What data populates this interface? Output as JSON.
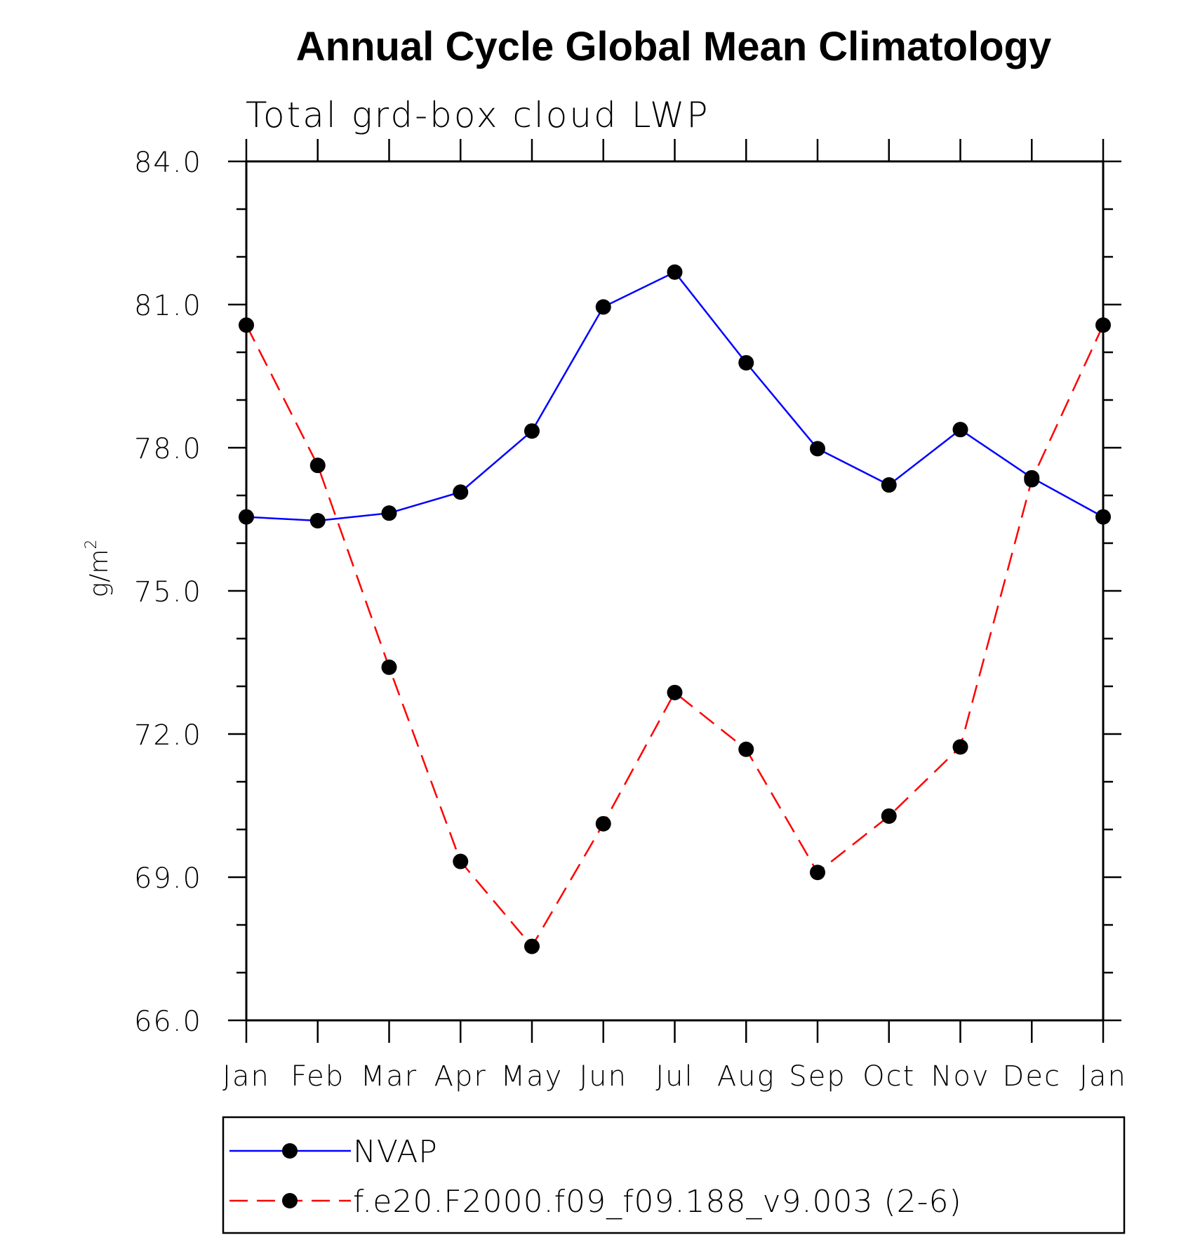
{
  "chart_data": {
    "type": "line",
    "title": "Annual Cycle Global Mean Climatology",
    "subtitle": "Total grd-box cloud LWP",
    "xlabel": "",
    "ylabel": "g/m",
    "ylabel_superscript": "2",
    "categories": [
      "Jan",
      "Feb",
      "Mar",
      "Apr",
      "May",
      "Jun",
      "Jul",
      "Aug",
      "Sep",
      "Oct",
      "Nov",
      "Dec",
      "Jan"
    ],
    "ylim": [
      66.0,
      84.0
    ],
    "yticks": [
      "66.0",
      "69.0",
      "72.0",
      "75.0",
      "78.0",
      "81.0",
      "84.0"
    ],
    "grid": false,
    "legend_position": "bottom",
    "series": [
      {
        "name": "NVAP",
        "color": "#0000ff",
        "dash": "solid",
        "marker": "filled-circle",
        "values": [
          76.55,
          76.47,
          76.63,
          77.07,
          78.35,
          80.95,
          81.68,
          79.78,
          77.98,
          77.22,
          78.38,
          77.37,
          76.55
        ]
      },
      {
        "name": "f.e20.F2000.f09_f09.188_v9.003 (2-6)",
        "color": "#ff0000",
        "dash": "dashed",
        "marker": "filled-circle",
        "values": [
          80.57,
          77.63,
          73.4,
          69.33,
          67.55,
          70.12,
          72.87,
          71.68,
          69.1,
          70.28,
          71.73,
          77.33,
          80.57
        ]
      }
    ]
  }
}
